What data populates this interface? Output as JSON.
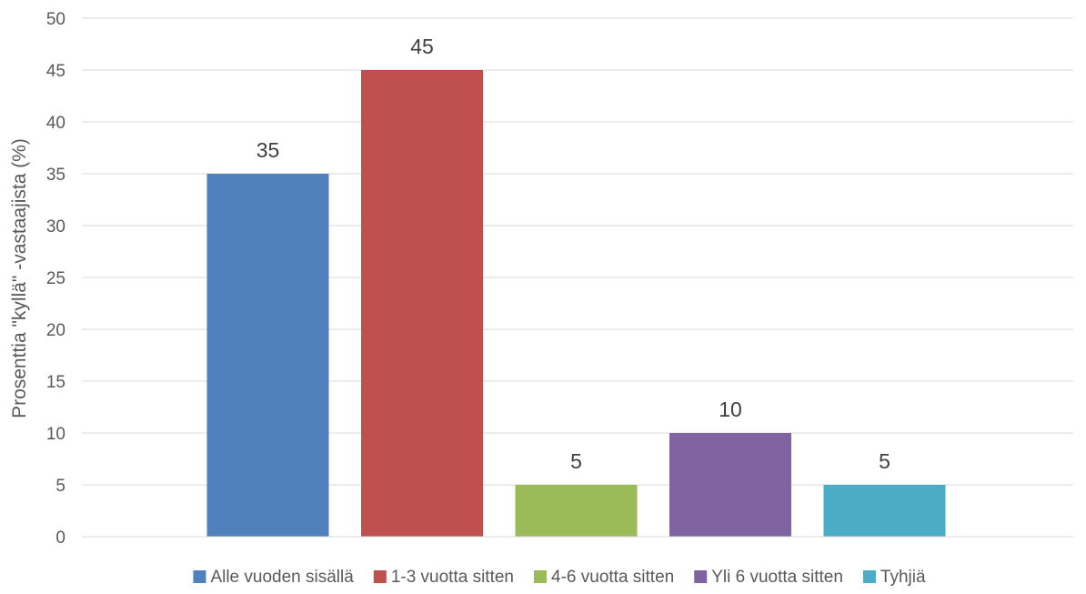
{
  "chart_data": {
    "type": "bar",
    "title": "",
    "xlabel": "",
    "ylabel": "Prosenttia \"kyllä\" -vastaajista (%)",
    "ylim": [
      0,
      50
    ],
    "yticks": [
      0,
      5,
      10,
      15,
      20,
      25,
      30,
      35,
      40,
      45,
      50
    ],
    "grid": true,
    "legend_position": "bottom",
    "series": [
      {
        "name": "Alle vuoden sisällä",
        "value": 35,
        "color": "#4f81bd"
      },
      {
        "name": "1-3 vuotta sitten",
        "value": 45,
        "color": "#c0504d"
      },
      {
        "name": "4-6 vuotta sitten",
        "value": 5,
        "color": "#9bbb59"
      },
      {
        "name": "Yli 6 vuotta sitten",
        "value": 10,
        "color": "#8064a2"
      },
      {
        "name": "Tyhjiä",
        "value": 5,
        "color": "#4bacc6"
      }
    ]
  }
}
